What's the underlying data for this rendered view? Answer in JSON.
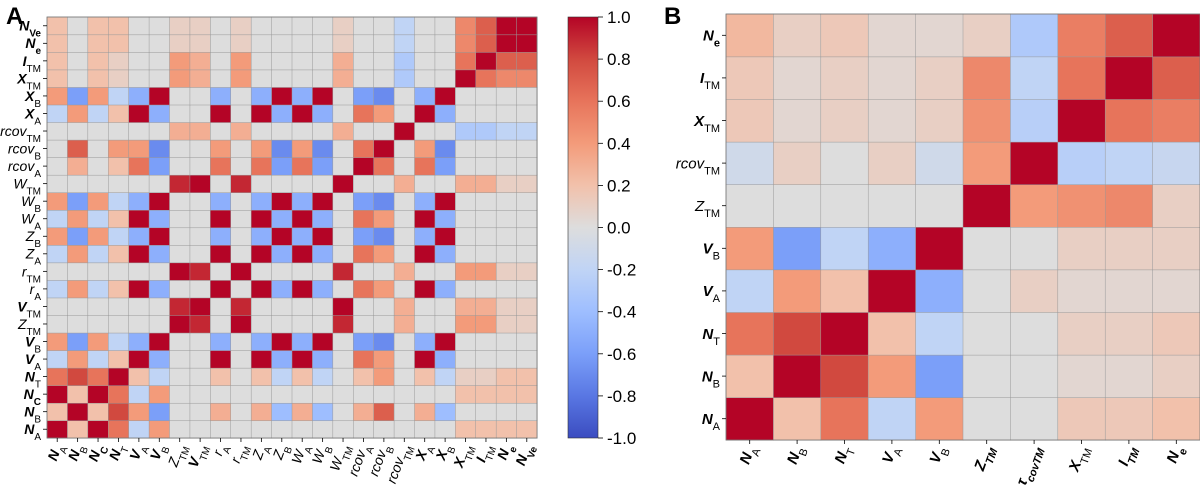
{
  "panels": {
    "a_label": "A",
    "b_label": "B"
  },
  "colorbar": {
    "min": -1.0,
    "max": 1.0,
    "ticks": [
      "1.0",
      "0.8",
      "0.6",
      "0.4",
      "0.2",
      "0.0",
      "-0.2",
      "-0.4",
      "-0.6",
      "-0.8",
      "-1.0"
    ],
    "colors": {
      "low": "#3b4cc0",
      "mid": "#dddddd",
      "high": "#b40426"
    }
  },
  "chart_data": [
    {
      "type": "heatmap",
      "panel": "A",
      "title": "",
      "value_range": [
        -1,
        1
      ],
      "rows_bottom_to_top": [
        "N_A",
        "N_B",
        "N_C",
        "N_T",
        "V_A",
        "V_B",
        "Z_TM",
        "V_TM",
        "r_A",
        "r_TM",
        "Z_A",
        "Z_B",
        "W_A",
        "W_B",
        "W_TM",
        "rcov_A",
        "rcov_B",
        "rcov_TM",
        "X_A",
        "X_B",
        "X_TM",
        "I_TM",
        "N_e",
        "N_Ve"
      ],
      "columns": [
        "N_A",
        "N_B",
        "N_C",
        "N_T",
        "V_A",
        "V_B",
        "Z_TM",
        "V_TM",
        "r_A",
        "r_TM",
        "Z_A",
        "Z_B",
        "W_A",
        "W_B",
        "W_TM",
        "rcov_A",
        "rcov_B",
        "rcov_TM",
        "X_A",
        "X_B",
        "X_TM",
        "I_TM",
        "N_e",
        "N_Ve"
      ],
      "values_by_row_bottom_to_top": [
        [
          1.0,
          0.2,
          1.0,
          0.6,
          -0.2,
          0.4,
          0.0,
          0.0,
          0.0,
          0.0,
          0.0,
          0.0,
          0.0,
          0.0,
          0.0,
          0.0,
          0.0,
          0.0,
          0.0,
          0.0,
          0.2,
          0.2,
          0.2,
          0.2
        ],
        [
          0.2,
          1.0,
          0.2,
          0.8,
          0.4,
          -0.6,
          0.0,
          0.0,
          0.3,
          0.0,
          0.3,
          -0.4,
          0.3,
          -0.4,
          0.0,
          0.3,
          0.7,
          0.0,
          0.3,
          -0.4,
          0.0,
          0.0,
          0.0,
          0.0
        ],
        [
          1.0,
          0.2,
          1.0,
          0.6,
          -0.2,
          0.4,
          0.0,
          0.0,
          0.0,
          0.0,
          0.0,
          0.0,
          0.0,
          0.0,
          0.0,
          0.0,
          0.0,
          0.0,
          0.0,
          0.0,
          0.2,
          0.2,
          0.2,
          0.2
        ],
        [
          0.6,
          0.8,
          0.6,
          1.0,
          0.2,
          -0.2,
          0.0,
          0.0,
          0.2,
          0.0,
          0.2,
          -0.2,
          0.2,
          -0.2,
          0.0,
          0.2,
          0.4,
          0.0,
          0.2,
          -0.2,
          0.1,
          0.1,
          0.2,
          0.2
        ],
        [
          -0.2,
          0.4,
          -0.2,
          0.2,
          1.0,
          -0.5,
          0.0,
          0.0,
          1.0,
          0.0,
          1.0,
          -0.5,
          1.0,
          -0.5,
          0.0,
          0.6,
          0.4,
          0.0,
          1.0,
          -0.5,
          0.0,
          0.0,
          0.0,
          0.0
        ],
        [
          0.4,
          -0.6,
          0.4,
          -0.2,
          -0.5,
          1.0,
          0.0,
          0.0,
          -0.5,
          0.0,
          -0.5,
          1.0,
          -0.5,
          1.0,
          0.0,
          -0.6,
          -0.7,
          0.0,
          -0.5,
          1.0,
          0.0,
          0.0,
          0.0,
          0.0
        ],
        [
          0.0,
          0.0,
          0.0,
          0.0,
          0.0,
          0.0,
          1.0,
          0.9,
          0.0,
          1.0,
          0.0,
          0.0,
          0.0,
          0.0,
          0.9,
          0.0,
          0.0,
          0.3,
          0.0,
          0.0,
          0.4,
          0.4,
          0.1,
          0.1
        ],
        [
          0.0,
          0.0,
          0.0,
          0.0,
          0.0,
          0.0,
          0.9,
          1.0,
          0.0,
          0.9,
          0.0,
          0.0,
          0.0,
          0.0,
          1.0,
          0.0,
          0.0,
          0.3,
          0.0,
          0.0,
          0.3,
          0.3,
          0.1,
          0.1
        ],
        [
          -0.2,
          0.4,
          -0.2,
          0.2,
          1.0,
          -0.5,
          0.0,
          0.0,
          1.0,
          0.0,
          1.0,
          -0.5,
          1.0,
          -0.5,
          0.0,
          0.6,
          0.4,
          0.0,
          1.0,
          -0.5,
          0.0,
          0.0,
          0.0,
          0.0
        ],
        [
          0.0,
          0.0,
          0.0,
          0.0,
          0.0,
          0.0,
          1.0,
          0.9,
          0.0,
          1.0,
          0.0,
          0.0,
          0.0,
          0.0,
          0.9,
          0.0,
          0.0,
          0.3,
          0.0,
          0.0,
          0.4,
          0.4,
          0.1,
          0.1
        ],
        [
          -0.2,
          0.4,
          -0.2,
          0.2,
          1.0,
          -0.5,
          0.0,
          0.0,
          1.0,
          0.0,
          1.0,
          -0.5,
          1.0,
          -0.5,
          0.0,
          0.6,
          0.4,
          0.0,
          1.0,
          -0.5,
          0.0,
          0.0,
          0.0,
          0.0
        ],
        [
          0.4,
          -0.6,
          0.4,
          -0.2,
          -0.5,
          1.0,
          0.0,
          0.0,
          -0.5,
          0.0,
          -0.5,
          1.0,
          -0.5,
          1.0,
          0.0,
          -0.6,
          -0.7,
          0.0,
          -0.5,
          1.0,
          0.0,
          0.0,
          0.0,
          0.0
        ],
        [
          -0.2,
          0.4,
          -0.2,
          0.2,
          1.0,
          -0.5,
          0.0,
          0.0,
          1.0,
          0.0,
          1.0,
          -0.5,
          1.0,
          -0.5,
          0.0,
          0.6,
          0.4,
          0.0,
          1.0,
          -0.5,
          0.0,
          0.0,
          0.0,
          0.0
        ],
        [
          0.4,
          -0.6,
          0.4,
          -0.2,
          -0.5,
          1.0,
          0.0,
          0.0,
          -0.5,
          0.0,
          -0.5,
          1.0,
          -0.5,
          1.0,
          0.0,
          -0.6,
          -0.7,
          0.0,
          -0.5,
          1.0,
          0.0,
          0.0,
          0.0,
          0.0
        ],
        [
          0.0,
          0.0,
          0.0,
          0.0,
          0.0,
          0.0,
          0.9,
          1.0,
          0.0,
          0.9,
          0.0,
          0.0,
          0.0,
          0.0,
          1.0,
          0.0,
          0.0,
          0.3,
          0.0,
          0.0,
          0.3,
          0.3,
          0.1,
          0.1
        ],
        [
          0.0,
          0.3,
          0.0,
          0.2,
          0.6,
          -0.6,
          0.0,
          0.0,
          0.6,
          0.0,
          0.6,
          -0.6,
          0.6,
          -0.6,
          0.0,
          1.0,
          0.6,
          0.0,
          0.6,
          -0.6,
          0.0,
          0.0,
          0.0,
          0.0
        ],
        [
          0.0,
          0.7,
          0.0,
          0.4,
          0.4,
          -0.7,
          0.0,
          0.0,
          0.4,
          0.0,
          0.4,
          -0.7,
          0.4,
          -0.7,
          0.0,
          0.6,
          1.0,
          0.0,
          0.4,
          -0.7,
          0.0,
          0.0,
          0.0,
          0.0
        ],
        [
          0.0,
          0.0,
          0.0,
          0.0,
          0.0,
          0.0,
          0.3,
          0.3,
          0.0,
          0.3,
          0.0,
          0.0,
          0.0,
          0.0,
          0.3,
          0.0,
          0.0,
          1.0,
          0.0,
          0.0,
          -0.3,
          -0.3,
          -0.2,
          -0.2
        ],
        [
          -0.2,
          0.4,
          -0.2,
          0.2,
          1.0,
          -0.5,
          0.0,
          0.0,
          1.0,
          0.0,
          1.0,
          -0.5,
          1.0,
          -0.5,
          0.0,
          0.6,
          0.4,
          0.0,
          1.0,
          -0.5,
          0.0,
          0.0,
          0.0,
          0.0
        ],
        [
          0.4,
          -0.6,
          0.4,
          -0.2,
          -0.5,
          1.0,
          0.0,
          0.0,
          -0.5,
          0.0,
          -0.5,
          1.0,
          -0.5,
          1.0,
          0.0,
          -0.6,
          -0.7,
          0.0,
          -0.5,
          1.0,
          0.0,
          0.0,
          0.0,
          0.0
        ],
        [
          0.2,
          0.0,
          0.2,
          0.1,
          0.0,
          0.0,
          0.4,
          0.3,
          0.0,
          0.4,
          0.0,
          0.0,
          0.0,
          0.0,
          0.3,
          0.0,
          0.0,
          -0.3,
          0.0,
          0.0,
          1.0,
          0.6,
          0.5,
          0.5
        ],
        [
          0.2,
          0.0,
          0.2,
          0.1,
          0.0,
          0.0,
          0.4,
          0.3,
          0.0,
          0.4,
          0.0,
          0.0,
          0.0,
          0.0,
          0.3,
          0.0,
          0.0,
          -0.3,
          0.0,
          0.0,
          0.6,
          1.0,
          0.7,
          0.7
        ],
        [
          0.2,
          0.0,
          0.2,
          0.2,
          0.0,
          0.0,
          0.1,
          0.1,
          0.0,
          0.1,
          0.0,
          0.0,
          0.0,
          0.0,
          0.1,
          0.0,
          0.0,
          -0.2,
          0.0,
          0.0,
          0.5,
          0.7,
          1.0,
          1.0
        ],
        [
          0.2,
          0.0,
          0.2,
          0.2,
          0.0,
          0.0,
          0.1,
          0.1,
          0.0,
          0.1,
          0.0,
          0.0,
          0.0,
          0.0,
          0.1,
          0.0,
          0.0,
          -0.2,
          0.0,
          0.0,
          0.5,
          0.7,
          1.0,
          1.0
        ]
      ]
    },
    {
      "type": "heatmap",
      "panel": "B",
      "title": "",
      "value_range": [
        -1,
        1
      ],
      "rows_bottom_to_top": [
        "N_A",
        "N_B",
        "N_T",
        "V_A",
        "V_B",
        "Z_TM",
        "rcov_TM",
        "X_TM",
        "I_TM",
        "N_e"
      ],
      "columns": [
        "N_A",
        "N_B",
        "N_T",
        "V_A",
        "V_B",
        "Z_TM",
        "rcov_TM",
        "X_TM",
        "I_TM",
        "N_e"
      ],
      "values_by_row_bottom_to_top": [
        [
          1.0,
          0.2,
          0.6,
          -0.2,
          0.4,
          0.0,
          0.0,
          0.15,
          0.15,
          0.2
        ],
        [
          0.2,
          1.0,
          0.8,
          0.4,
          -0.6,
          0.0,
          0.0,
          0.05,
          0.05,
          0.1
        ],
        [
          0.6,
          0.8,
          1.0,
          0.2,
          -0.2,
          0.0,
          0.0,
          0.1,
          0.1,
          0.15
        ],
        [
          -0.2,
          0.4,
          0.2,
          1.0,
          -0.5,
          0.0,
          0.1,
          0.05,
          0.05,
          0.05
        ],
        [
          0.4,
          -0.6,
          -0.2,
          -0.5,
          1.0,
          0.0,
          0.0,
          0.1,
          0.1,
          0.1
        ],
        [
          0.0,
          0.0,
          0.0,
          0.0,
          0.0,
          1.0,
          0.4,
          0.45,
          0.5,
          0.1
        ],
        [
          -0.1,
          0.1,
          0.0,
          0.1,
          -0.1,
          0.4,
          1.0,
          -0.25,
          -0.2,
          -0.15
        ],
        [
          0.15,
          0.05,
          0.1,
          0.05,
          0.1,
          0.45,
          -0.25,
          1.0,
          0.6,
          0.55
        ],
        [
          0.15,
          0.05,
          0.1,
          0.05,
          0.1,
          0.5,
          -0.2,
          0.6,
          1.0,
          0.7
        ],
        [
          0.25,
          0.1,
          0.15,
          0.05,
          0.05,
          0.1,
          -0.3,
          0.55,
          0.7,
          1.0
        ]
      ]
    }
  ],
  "labels": {
    "N_A": {
      "main": "N",
      "sub": "A",
      "style": "bold-italic",
      "sub_style": "normal"
    },
    "N_B": {
      "main": "N",
      "sub": "B",
      "style": "bold-italic",
      "sub_style": "normal"
    },
    "N_C": {
      "main": "N",
      "sub": "C",
      "style": "bold-italic",
      "sub_style": "bold"
    },
    "N_T": {
      "main": "N",
      "sub": "T",
      "style": "bold-italic",
      "sub_style": "normal"
    },
    "N_e": {
      "main": "N",
      "sub": "e",
      "style": "bold-italic",
      "sub_style": "bold"
    },
    "N_Ve": {
      "main": "N",
      "sub": "Ve",
      "style": "bold-italic",
      "sub_style": "bold"
    },
    "V_A": {
      "main": "V",
      "sub": "A",
      "style": "bold-italic",
      "sub_style": "normal"
    },
    "V_B": {
      "main": "V",
      "sub": "B",
      "style": "bold-italic",
      "sub_style": "normal"
    },
    "V_TM": {
      "main": "V",
      "sub": "TM",
      "style": "bold-italic",
      "sub_style": "normal"
    },
    "Z_TM": {
      "main": "Z",
      "sub": "TM",
      "style": "italic",
      "sub_style": "normal"
    },
    "Z_A": {
      "main": "Z",
      "sub": "A",
      "style": "italic",
      "sub_style": "normal"
    },
    "Z_B": {
      "main": "Z",
      "sub": "B",
      "style": "italic",
      "sub_style": "normal"
    },
    "r_A": {
      "main": "r",
      "sub": "A",
      "style": "italic",
      "sub_style": "normal"
    },
    "r_TM": {
      "main": "r",
      "sub": "TM",
      "style": "italic",
      "sub_style": "normal"
    },
    "W_A": {
      "main": "W",
      "sub": "A",
      "style": "italic",
      "sub_style": "normal"
    },
    "W_B": {
      "main": "W",
      "sub": "B",
      "style": "italic",
      "sub_style": "normal"
    },
    "W_TM": {
      "main": "W",
      "sub": "TM",
      "style": "italic",
      "sub_style": "normal"
    },
    "rcov_A": {
      "main": "rcov",
      "sub": "A",
      "style": "italic",
      "sub_style": "normal"
    },
    "rcov_B": {
      "main": "rcov",
      "sub": "B",
      "style": "italic",
      "sub_style": "normal"
    },
    "rcov_TM": {
      "main": "rcov",
      "sub": "TM",
      "style": "italic",
      "sub_style": "normal"
    },
    "X_A": {
      "main": "X",
      "sub": "A",
      "style": "bold-italic",
      "sub_style": "normal"
    },
    "X_B": {
      "main": "X",
      "sub": "B",
      "style": "bold-italic",
      "sub_style": "normal"
    },
    "X_TM": {
      "main": "X",
      "sub": "TM",
      "style": "bold-italic",
      "sub_style": "normal"
    },
    "I_TM": {
      "main": "I",
      "sub": "TM",
      "style": "bold-italic",
      "sub_style": "normal"
    }
  },
  "labels_b_x_override": {
    "Z_TM": {
      "main": "Z",
      "sub": "TM",
      "style": "bold-italic",
      "sub_style": "bold-italic"
    },
    "rcov_TM": {
      "main": "τ",
      "sub": "covTM",
      "style": "bold-italic",
      "sub_style": "bold-italic"
    },
    "I_TM": {
      "main": "I",
      "sub": "TM",
      "style": "bold-italic",
      "sub_style": "bold-italic"
    },
    "X_TM": {
      "main": "X",
      "sub": "TM",
      "style": "bold-italic",
      "sub_style": "normal"
    }
  }
}
